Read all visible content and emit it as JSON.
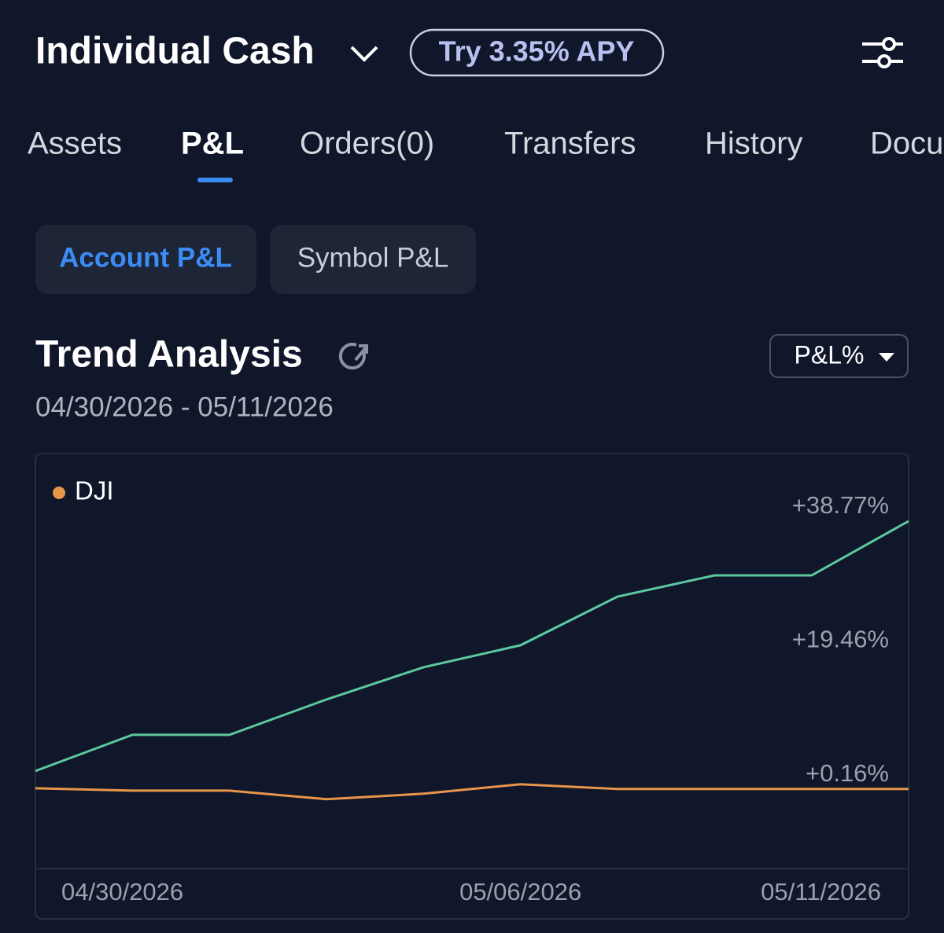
{
  "header": {
    "account": "Individual Cash",
    "promo": "Try 3.35% APY"
  },
  "tabs": [
    "Assets",
    "P&L",
    "Orders(0)",
    "Transfers",
    "History",
    "Docu"
  ],
  "subtabs": [
    "Account P&L",
    "Symbol P&L"
  ],
  "section": {
    "title": "Trend Analysis",
    "date_range": "04/30/2026 - 05/11/2026",
    "selector": "P&L%"
  },
  "chart_data": {
    "type": "line",
    "categories": [
      "04/30/2026",
      null,
      null,
      null,
      null,
      "05/06/2026",
      null,
      null,
      null,
      "05/11/2026"
    ],
    "series": [
      {
        "color": "#5cc8a0",
        "values": [
          2.76,
          7.97,
          7.97,
          13.07,
          17.71,
          20.88,
          27.9,
          30.96,
          30.96,
          38.77
        ]
      },
      {
        "name": "DJI",
        "color": "#e8954a",
        "values": [
          0.27,
          -0.07,
          -0.07,
          -1.31,
          -0.52,
          0.84,
          0.16,
          0.16,
          0.16,
          0.16
        ]
      }
    ],
    "ylim": [
      -11.3,
      48.4
    ],
    "yticks": [
      {
        "value": 0.16,
        "label": "+0.16%"
      },
      {
        "value": 19.46,
        "label": "+19.46%"
      },
      {
        "value": 38.77,
        "label": "+38.77%"
      }
    ]
  }
}
